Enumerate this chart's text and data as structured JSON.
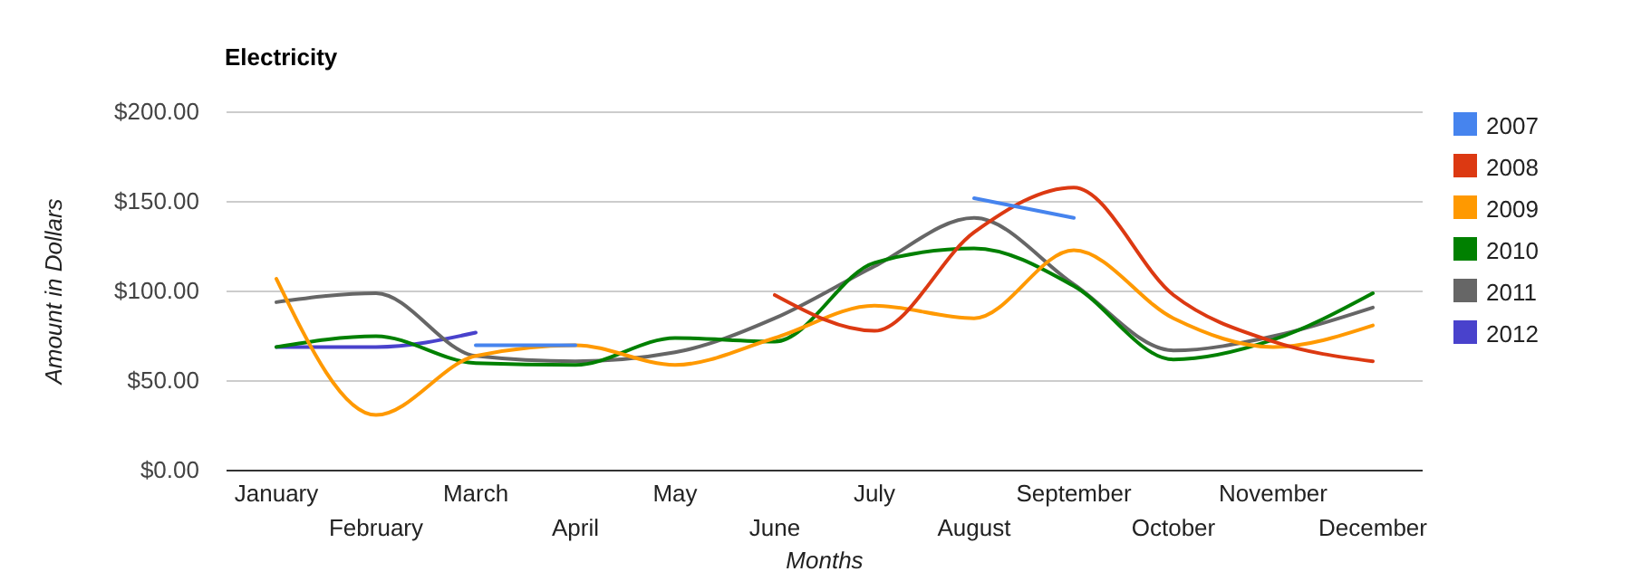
{
  "chart_data": {
    "type": "line",
    "title": "Electricity",
    "xlabel": "Months",
    "ylabel": "Amount in Dollars",
    "categories": [
      "January",
      "February",
      "March",
      "April",
      "May",
      "June",
      "July",
      "August",
      "September",
      "October",
      "November",
      "December"
    ],
    "series": [
      {
        "name": "2007",
        "color": "#4684ee",
        "values": [
          null,
          null,
          70,
          70,
          null,
          null,
          null,
          152,
          141,
          null,
          null,
          null
        ]
      },
      {
        "name": "2008",
        "color": "#dc3912",
        "values": [
          null,
          null,
          null,
          null,
          null,
          98,
          78,
          133,
          158,
          98,
          72,
          61
        ]
      },
      {
        "name": "2009",
        "color": "#ff9900",
        "values": [
          107,
          31,
          64,
          70,
          59,
          74,
          92,
          85,
          123,
          85,
          69,
          81
        ]
      },
      {
        "name": "2010",
        "color": "#008000",
        "values": [
          69,
          75,
          60,
          59,
          74,
          72,
          116,
          124,
          103,
          62,
          73,
          99
        ]
      },
      {
        "name": "2011",
        "color": "#666666",
        "values": [
          94,
          99,
          64,
          61,
          66,
          85,
          114,
          141,
          104,
          67,
          75,
          91
        ]
      },
      {
        "name": "2012",
        "color": "#4942cc",
        "values": [
          69,
          69,
          77,
          null,
          null,
          null,
          null,
          null,
          null,
          null,
          null,
          null
        ]
      }
    ],
    "ylim": [
      0,
      200
    ],
    "yticks": [
      {
        "value": 0,
        "label": "$0.00"
      },
      {
        "value": 50,
        "label": "$50.00"
      },
      {
        "value": 100,
        "label": "$100.00"
      },
      {
        "value": 150,
        "label": "$150.00"
      },
      {
        "value": 200,
        "label": "$200.00"
      }
    ],
    "grid": "y",
    "legend": "right",
    "marker": "none",
    "line_style": "solid"
  }
}
